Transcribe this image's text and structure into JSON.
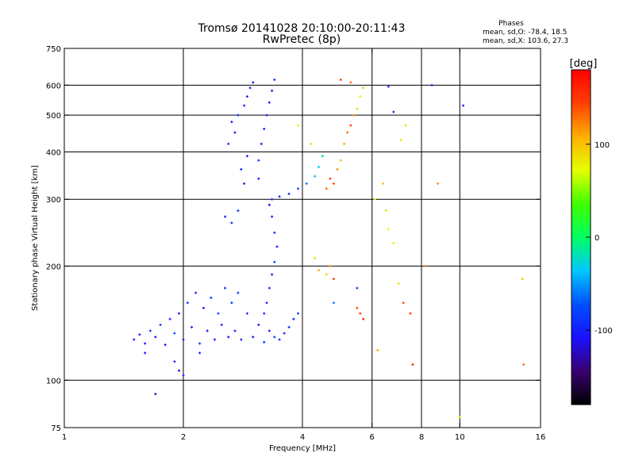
{
  "header": {
    "title_line1": "Tromsø 20141028 20:10:00-20:11:43",
    "title_line2": "RwPretec (8p)"
  },
  "stats": {
    "heading": "Phases",
    "o_line": "mean, sd,O: -78.4, 18.5",
    "x_line": "mean, sd,X: 103.6, 27.3"
  },
  "colorbar": {
    "unit_label": "[deg]",
    "ticks": [
      {
        "label": "100",
        "value": 100
      },
      {
        "label": "0",
        "value": 0
      },
      {
        "label": "-100",
        "value": -100
      }
    ],
    "range": [
      -180,
      180
    ]
  },
  "chart_data": {
    "type": "scatter",
    "xlabel": "Frequency [MHz]",
    "ylabel": "Stationary phase Virtual Height [km]",
    "xscale": "log",
    "yscale": "log",
    "xlim": [
      1,
      16
    ],
    "ylim": [
      75,
      750
    ],
    "xticks": [
      {
        "label": "1",
        "value": 1
      },
      {
        "label": "2",
        "value": 2
      },
      {
        "label": "4",
        "value": 4
      },
      {
        "label": "6",
        "value": 6
      },
      {
        "label": "8",
        "value": 8
      },
      {
        "label": "10",
        "value": 10
      },
      {
        "label": "16",
        "value": 16
      }
    ],
    "yticks": [
      {
        "label": "75",
        "value": 75
      },
      {
        "label": "100",
        "value": 100
      },
      {
        "label": "200",
        "value": 200
      },
      {
        "label": "300",
        "value": 300
      },
      {
        "label": "400",
        "value": 400
      },
      {
        "label": "500",
        "value": 500
      },
      {
        "label": "600",
        "value": 600
      },
      {
        "label": "750",
        "value": 750
      }
    ],
    "grid_x": [
      2,
      4,
      6,
      8,
      10
    ],
    "grid_y": [
      100,
      200,
      300,
      400,
      500,
      600
    ],
    "color_dimension": "phase [deg]",
    "series": [
      {
        "mode": "O",
        "points": [
          {
            "f": 1.5,
            "h": 128,
            "p": -100
          },
          {
            "f": 1.55,
            "h": 132,
            "p": -95
          },
          {
            "f": 1.6,
            "h": 125,
            "p": -110
          },
          {
            "f": 1.65,
            "h": 135,
            "p": -90
          },
          {
            "f": 1.7,
            "h": 130,
            "p": -105
          },
          {
            "f": 1.75,
            "h": 140,
            "p": -85
          },
          {
            "f": 1.8,
            "h": 124,
            "p": -100
          },
          {
            "f": 1.85,
            "h": 145,
            "p": -95
          },
          {
            "f": 1.9,
            "h": 133,
            "p": -80
          },
          {
            "f": 1.95,
            "h": 150,
            "p": -100
          },
          {
            "f": 2.0,
            "h": 128,
            "p": -115
          },
          {
            "f": 2.05,
            "h": 160,
            "p": -90
          },
          {
            "f": 2.1,
            "h": 138,
            "p": -100
          },
          {
            "f": 2.15,
            "h": 170,
            "p": -95
          },
          {
            "f": 2.2,
            "h": 125,
            "p": -85
          },
          {
            "f": 2.25,
            "h": 155,
            "p": -100
          },
          {
            "f": 2.3,
            "h": 135,
            "p": -110
          },
          {
            "f": 2.35,
            "h": 165,
            "p": -90
          },
          {
            "f": 2.4,
            "h": 128,
            "p": -100
          },
          {
            "f": 2.45,
            "h": 150,
            "p": -80
          },
          {
            "f": 2.5,
            "h": 140,
            "p": -100
          },
          {
            "f": 2.55,
            "h": 175,
            "p": -95
          },
          {
            "f": 2.6,
            "h": 130,
            "p": -105
          },
          {
            "f": 2.65,
            "h": 160,
            "p": -90
          },
          {
            "f": 2.7,
            "h": 135,
            "p": -100
          },
          {
            "f": 2.75,
            "h": 170,
            "p": -85
          },
          {
            "f": 2.8,
            "h": 128,
            "p": -100
          },
          {
            "f": 2.9,
            "h": 150,
            "p": -95
          },
          {
            "f": 3.0,
            "h": 130,
            "p": -110
          },
          {
            "f": 3.1,
            "h": 140,
            "p": -100
          },
          {
            "f": 3.2,
            "h": 126,
            "p": -90
          },
          {
            "f": 3.3,
            "h": 135,
            "p": -100
          },
          {
            "f": 3.4,
            "h": 130,
            "p": -85
          },
          {
            "f": 3.5,
            "h": 128,
            "p": -100
          },
          {
            "f": 3.6,
            "h": 133,
            "p": -95
          },
          {
            "f": 3.7,
            "h": 138,
            "p": -90
          },
          {
            "f": 3.8,
            "h": 145,
            "p": -100
          },
          {
            "f": 3.9,
            "h": 150,
            "p": -80
          },
          {
            "f": 1.6,
            "h": 118,
            "p": -105
          },
          {
            "f": 1.9,
            "h": 112,
            "p": -100
          },
          {
            "f": 1.95,
            "h": 106,
            "p": -110
          },
          {
            "f": 2.0,
            "h": 103,
            "p": -100
          },
          {
            "f": 1.7,
            "h": 92,
            "p": -120
          },
          {
            "f": 2.2,
            "h": 118,
            "p": -95
          },
          {
            "f": 3.2,
            "h": 150,
            "p": -95
          },
          {
            "f": 3.25,
            "h": 160,
            "p": -100
          },
          {
            "f": 3.3,
            "h": 175,
            "p": -90
          },
          {
            "f": 3.35,
            "h": 190,
            "p": -100
          },
          {
            "f": 3.4,
            "h": 205,
            "p": -85
          },
          {
            "f": 3.45,
            "h": 225,
            "p": -100
          },
          {
            "f": 3.4,
            "h": 245,
            "p": -95
          },
          {
            "f": 3.35,
            "h": 270,
            "p": -100
          },
          {
            "f": 3.3,
            "h": 290,
            "p": -110
          },
          {
            "f": 3.35,
            "h": 300,
            "p": -90
          },
          {
            "f": 3.5,
            "h": 305,
            "p": -100
          },
          {
            "f": 3.7,
            "h": 310,
            "p": -95
          },
          {
            "f": 3.9,
            "h": 320,
            "p": -80
          },
          {
            "f": 4.1,
            "h": 330,
            "p": -60
          },
          {
            "f": 4.3,
            "h": 345,
            "p": -40
          },
          {
            "f": 4.4,
            "h": 365,
            "p": -30
          },
          {
            "f": 4.5,
            "h": 390,
            "p": -20
          },
          {
            "f": 3.1,
            "h": 340,
            "p": -100
          },
          {
            "f": 3.1,
            "h": 380,
            "p": -90
          },
          {
            "f": 3.15,
            "h": 420,
            "p": -100
          },
          {
            "f": 3.2,
            "h": 460,
            "p": -95
          },
          {
            "f": 3.25,
            "h": 500,
            "p": -100
          },
          {
            "f": 3.3,
            "h": 540,
            "p": -105
          },
          {
            "f": 3.35,
            "h": 580,
            "p": -100
          },
          {
            "f": 3.4,
            "h": 620,
            "p": -90
          },
          {
            "f": 2.9,
            "h": 560,
            "p": -100
          },
          {
            "f": 2.95,
            "h": 590,
            "p": -95
          },
          {
            "f": 3.0,
            "h": 610,
            "p": -105
          },
          {
            "f": 2.85,
            "h": 530,
            "p": -100
          },
          {
            "f": 2.7,
            "h": 450,
            "p": -100
          },
          {
            "f": 2.6,
            "h": 420,
            "p": -95
          },
          {
            "f": 2.65,
            "h": 480,
            "p": -105
          },
          {
            "f": 2.75,
            "h": 500,
            "p": -90
          },
          {
            "f": 2.55,
            "h": 270,
            "p": -100
          },
          {
            "f": 2.65,
            "h": 260,
            "p": -95
          },
          {
            "f": 2.75,
            "h": 280,
            "p": -90
          },
          {
            "f": 2.85,
            "h": 330,
            "p": -100
          },
          {
            "f": 2.8,
            "h": 360,
            "p": -95
          },
          {
            "f": 2.9,
            "h": 390,
            "p": -100
          },
          {
            "f": 8.5,
            "h": 600,
            "p": -100
          },
          {
            "f": 10.2,
            "h": 530,
            "p": -100
          },
          {
            "f": 6.6,
            "h": 595,
            "p": -95
          },
          {
            "f": 6.8,
            "h": 510,
            "p": -100
          },
          {
            "f": 5.5,
            "h": 175,
            "p": -80
          },
          {
            "f": 4.8,
            "h": 160,
            "p": -60
          }
        ]
      },
      {
        "mode": "X",
        "points": [
          {
            "f": 4.6,
            "h": 320,
            "p": 130
          },
          {
            "f": 4.7,
            "h": 340,
            "p": 150
          },
          {
            "f": 4.8,
            "h": 330,
            "p": 140
          },
          {
            "f": 4.9,
            "h": 360,
            "p": 120
          },
          {
            "f": 5.0,
            "h": 380,
            "p": 100
          },
          {
            "f": 5.1,
            "h": 420,
            "p": 110
          },
          {
            "f": 5.2,
            "h": 450,
            "p": 130
          },
          {
            "f": 5.3,
            "h": 470,
            "p": 150
          },
          {
            "f": 5.4,
            "h": 500,
            "p": 120
          },
          {
            "f": 5.5,
            "h": 520,
            "p": 90
          },
          {
            "f": 5.6,
            "h": 560,
            "p": 80
          },
          {
            "f": 5.7,
            "h": 590,
            "p": 100
          },
          {
            "f": 5.0,
            "h": 620,
            "p": 150
          },
          {
            "f": 5.3,
            "h": 610,
            "p": 130
          },
          {
            "f": 5.6,
            "h": 150,
            "p": 150
          },
          {
            "f": 5.7,
            "h": 145,
            "p": 160
          },
          {
            "f": 5.5,
            "h": 155,
            "p": 140
          },
          {
            "f": 4.7,
            "h": 200,
            "p": 120
          },
          {
            "f": 4.8,
            "h": 185,
            "p": 150
          },
          {
            "f": 4.6,
            "h": 190,
            "p": 100
          },
          {
            "f": 4.4,
            "h": 195,
            "p": 110
          },
          {
            "f": 4.3,
            "h": 210,
            "p": 90
          },
          {
            "f": 6.5,
            "h": 280,
            "p": 60
          },
          {
            "f": 6.6,
            "h": 250,
            "p": 70
          },
          {
            "f": 6.8,
            "h": 230,
            "p": 80
          },
          {
            "f": 7.0,
            "h": 180,
            "p": 90
          },
          {
            "f": 7.2,
            "h": 160,
            "p": 140
          },
          {
            "f": 7.5,
            "h": 150,
            "p": 150
          },
          {
            "f": 8.2,
            "h": 200,
            "p": 130
          },
          {
            "f": 8.8,
            "h": 330,
            "p": 120
          },
          {
            "f": 6.2,
            "h": 120,
            "p": 110
          },
          {
            "f": 7.6,
            "h": 110,
            "p": 160
          },
          {
            "f": 14.5,
            "h": 110,
            "p": 130
          },
          {
            "f": 14.4,
            "h": 185,
            "p": 100
          },
          {
            "f": 10.0,
            "h": 80,
            "p": 60
          },
          {
            "f": 6.1,
            "h": 300,
            "p": 80
          },
          {
            "f": 6.4,
            "h": 330,
            "p": 100
          },
          {
            "f": 7.1,
            "h": 430,
            "p": 90
          },
          {
            "f": 7.3,
            "h": 470,
            "p": 60
          },
          {
            "f": 4.2,
            "h": 420,
            "p": 60
          },
          {
            "f": 3.9,
            "h": 470,
            "p": 80
          }
        ]
      }
    ]
  }
}
